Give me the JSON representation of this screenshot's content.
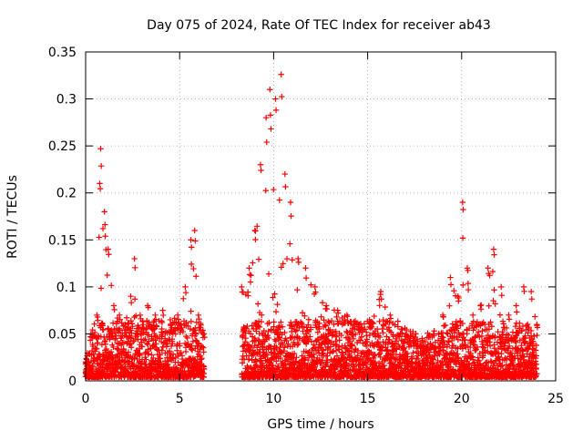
{
  "chart_data": {
    "type": "scatter",
    "title": "Day 075 of 2024, Rate Of TEC Index for receiver ab43",
    "xlabel": "GPS time / hours",
    "ylabel": "ROTI / TECUs",
    "xlim": [
      0,
      25
    ],
    "ylim": [
      0,
      0.35
    ],
    "x_ticks": [
      0,
      5,
      10,
      15,
      20,
      25
    ],
    "y_ticks": [
      0,
      0.05,
      0.1,
      0.15,
      0.2,
      0.25,
      0.3,
      0.35
    ],
    "x_tick_labels": [
      "0",
      "5",
      "10",
      "15",
      "20",
      "25"
    ],
    "y_tick_labels": [
      "0",
      "0.05",
      "0.1",
      "0.15",
      "0.2",
      "0.25",
      "0.3",
      "0.35"
    ],
    "grid": true,
    "marker": "plus",
    "color": "#ff0000",
    "data_gap": [
      6.4,
      8.3
    ],
    "envelope": [
      {
        "x": 0.0,
        "y": 0.02
      },
      {
        "x": 0.3,
        "y": 0.05
      },
      {
        "x": 0.6,
        "y": 0.07
      },
      {
        "x": 0.75,
        "y": 0.21
      },
      {
        "x": 0.8,
        "y": 0.247
      },
      {
        "x": 1.0,
        "y": 0.18
      },
      {
        "x": 1.2,
        "y": 0.14
      },
      {
        "x": 1.5,
        "y": 0.08
      },
      {
        "x": 1.8,
        "y": 0.07
      },
      {
        "x": 2.1,
        "y": 0.06
      },
      {
        "x": 2.4,
        "y": 0.09
      },
      {
        "x": 2.6,
        "y": 0.13
      },
      {
        "x": 2.9,
        "y": 0.07
      },
      {
        "x": 3.3,
        "y": 0.08
      },
      {
        "x": 3.7,
        "y": 0.07
      },
      {
        "x": 4.1,
        "y": 0.075
      },
      {
        "x": 4.5,
        "y": 0.065
      },
      {
        "x": 4.9,
        "y": 0.07
      },
      {
        "x": 5.3,
        "y": 0.1
      },
      {
        "x": 5.6,
        "y": 0.15
      },
      {
        "x": 5.8,
        "y": 0.16
      },
      {
        "x": 6.0,
        "y": 0.07
      },
      {
        "x": 6.3,
        "y": 0.05
      },
      {
        "x": 8.3,
        "y": 0.1
      },
      {
        "x": 8.7,
        "y": 0.12
      },
      {
        "x": 9.0,
        "y": 0.16
      },
      {
        "x": 9.3,
        "y": 0.23
      },
      {
        "x": 9.6,
        "y": 0.28
      },
      {
        "x": 9.8,
        "y": 0.31
      },
      {
        "x": 10.1,
        "y": 0.3
      },
      {
        "x": 10.4,
        "y": 0.326
      },
      {
        "x": 10.6,
        "y": 0.22
      },
      {
        "x": 10.9,
        "y": 0.19
      },
      {
        "x": 11.3,
        "y": 0.13
      },
      {
        "x": 11.7,
        "y": 0.12
      },
      {
        "x": 12.2,
        "y": 0.1
      },
      {
        "x": 12.8,
        "y": 0.08
      },
      {
        "x": 13.4,
        "y": 0.075
      },
      {
        "x": 13.9,
        "y": 0.07
      },
      {
        "x": 14.5,
        "y": 0.06
      },
      {
        "x": 15.1,
        "y": 0.065
      },
      {
        "x": 15.7,
        "y": 0.095
      },
      {
        "x": 16.2,
        "y": 0.07
      },
      {
        "x": 16.8,
        "y": 0.055
      },
      {
        "x": 17.4,
        "y": 0.05
      },
      {
        "x": 17.9,
        "y": 0.045
      },
      {
        "x": 18.5,
        "y": 0.05
      },
      {
        "x": 19.0,
        "y": 0.07
      },
      {
        "x": 19.4,
        "y": 0.11
      },
      {
        "x": 19.8,
        "y": 0.09
      },
      {
        "x": 20.05,
        "y": 0.19
      },
      {
        "x": 20.3,
        "y": 0.12
      },
      {
        "x": 20.6,
        "y": 0.07
      },
      {
        "x": 21.0,
        "y": 0.08
      },
      {
        "x": 21.4,
        "y": 0.12
      },
      {
        "x": 21.7,
        "y": 0.14
      },
      {
        "x": 22.1,
        "y": 0.1
      },
      {
        "x": 22.5,
        "y": 0.07
      },
      {
        "x": 22.9,
        "y": 0.08
      },
      {
        "x": 23.3,
        "y": 0.1
      },
      {
        "x": 23.7,
        "y": 0.095
      },
      {
        "x": 24.0,
        "y": 0.06
      }
    ]
  }
}
